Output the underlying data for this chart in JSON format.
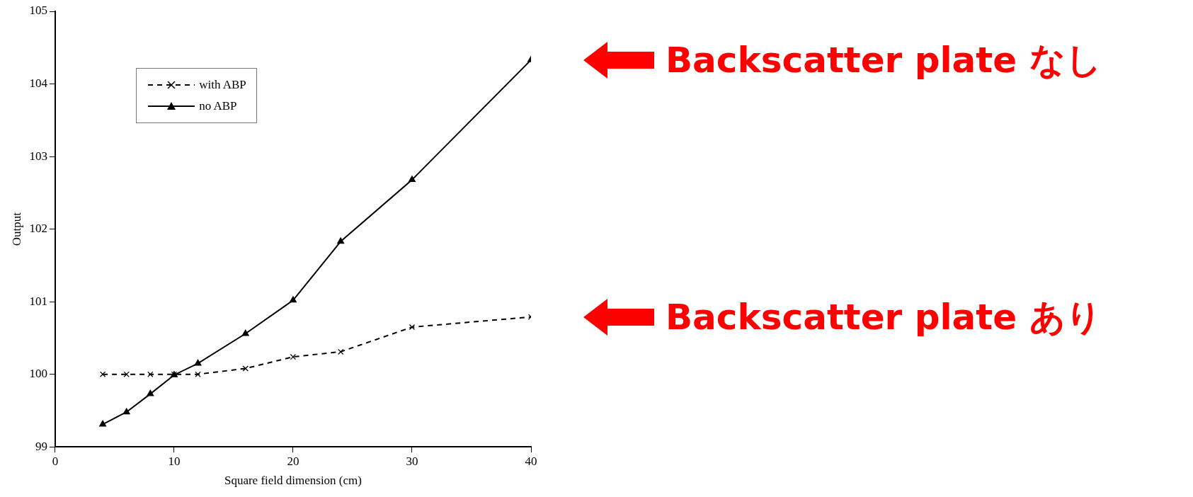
{
  "chart_data": {
    "type": "line",
    "xlabel": "Square field dimension (cm)",
    "ylabel": "Output",
    "x": [
      4,
      6,
      8,
      10,
      12,
      16,
      20,
      24,
      30,
      40
    ],
    "series": [
      {
        "name": "with ABP",
        "color": "#000000",
        "marker": "cross",
        "line_style": "dashed",
        "values": [
          100,
          100,
          100,
          100,
          100,
          100.08,
          100.24,
          100.31,
          100.65,
          100.79
        ]
      },
      {
        "name": "no ABP",
        "color": "#000000",
        "marker": "triangle",
        "line_style": "solid",
        "values": [
          99.31,
          99.48,
          99.73,
          99.99,
          100.15,
          100.56,
          101.02,
          101.83,
          102.68,
          104.33
        ]
      }
    ],
    "xlim": [
      0,
      40
    ],
    "xticks": [
      0,
      10,
      20,
      30,
      40
    ],
    "ylim": [
      99,
      105
    ],
    "yticks": [
      99,
      100,
      101,
      102,
      103,
      104,
      105
    ],
    "grid": false,
    "legend": "top left",
    "annotations": [
      "Backscatter plate なし",
      "Backscatter plate あり"
    ]
  }
}
